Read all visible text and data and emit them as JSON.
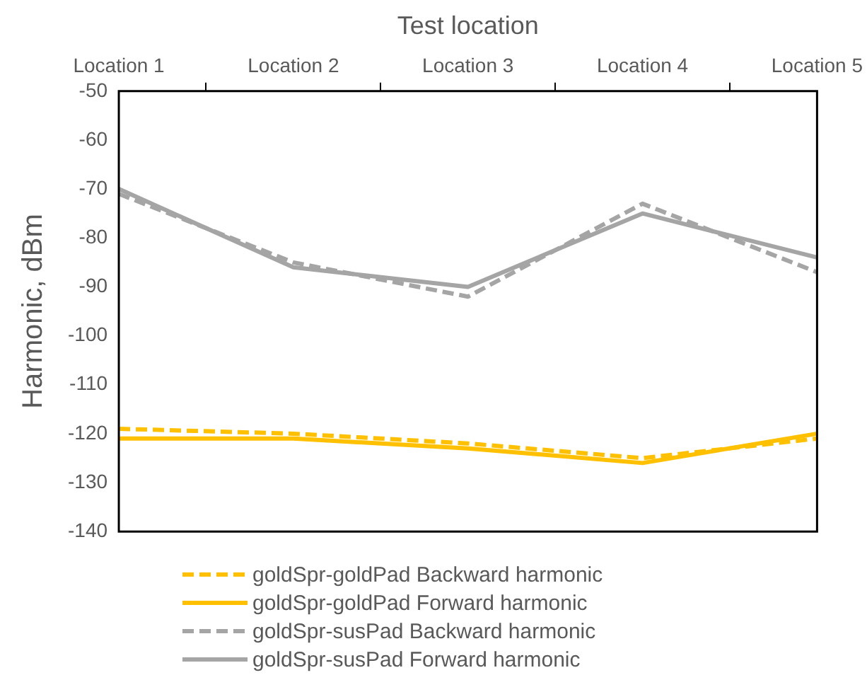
{
  "chart_data": {
    "type": "line",
    "xlabel": "Test location",
    "ylabel": "Harmonic, dBm",
    "categories": [
      "Location 1",
      "Location 2",
      "Location 3",
      "Location 4",
      "Location 5"
    ],
    "series": [
      {
        "name": "goldSpr-goldPad Backward harmonic",
        "color": "#ffc000",
        "line_style": "dashed",
        "values": [
          -119,
          -120,
          -122,
          -125,
          -121
        ]
      },
      {
        "name": "goldSpr-goldPad Forward harmonic",
        "color": "#ffc000",
        "line_style": "solid",
        "values": [
          -121,
          -121,
          -123,
          -126,
          -120
        ]
      },
      {
        "name": "goldSpr-susPad Backward harmonic",
        "color": "#a5a5a5",
        "line_style": "dashed",
        "values": [
          -71,
          -85,
          -92,
          -73,
          -87
        ]
      },
      {
        "name": "goldSpr-susPad Forward harmonic",
        "color": "#a5a5a5",
        "line_style": "solid",
        "values": [
          -70,
          -86,
          -90,
          -75,
          -84
        ]
      }
    ],
    "ylim": [
      -140,
      -50
    ],
    "yticks": [
      -140,
      -130,
      -120,
      -110,
      -100,
      -90,
      -80,
      -70,
      -60,
      -50
    ],
    "grid": false,
    "legend": "bottom",
    "marker": "none"
  }
}
